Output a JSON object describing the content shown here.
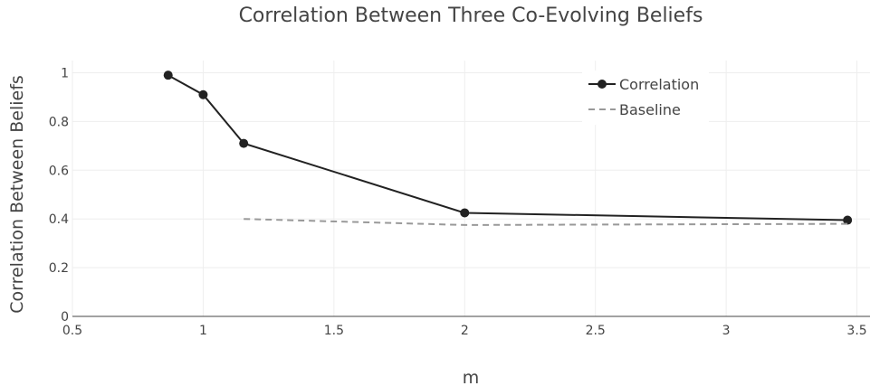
{
  "chart_data": {
    "type": "line",
    "title": "Correlation Between Three Co-Evolving Beliefs",
    "xlabel": "m",
    "ylabel": "Correlation Between Beliefs",
    "xlim": [
      0.5,
      3.55
    ],
    "ylim": [
      0,
      1.05
    ],
    "xticks": [
      "0.5",
      "1",
      "1.5",
      "2",
      "2.5",
      "3",
      "3.5"
    ],
    "yticks": [
      "0",
      "0.2",
      "0.4",
      "0.6",
      "0.8",
      "1"
    ],
    "grid": true,
    "legend_position": "top-right",
    "series": [
      {
        "name": "Correlation",
        "color": "#222222",
        "style": "solid",
        "markers": true,
        "x": [
          0.866,
          1.0,
          1.155,
          2.0,
          3.464
        ],
        "y": [
          0.99,
          0.91,
          0.71,
          0.425,
          0.395
        ]
      },
      {
        "name": "Baseline",
        "color": "#999999",
        "style": "dashed",
        "markers": false,
        "x": [
          1.155,
          2.0,
          3.464
        ],
        "y": [
          0.4,
          0.375,
          0.38
        ]
      }
    ]
  }
}
